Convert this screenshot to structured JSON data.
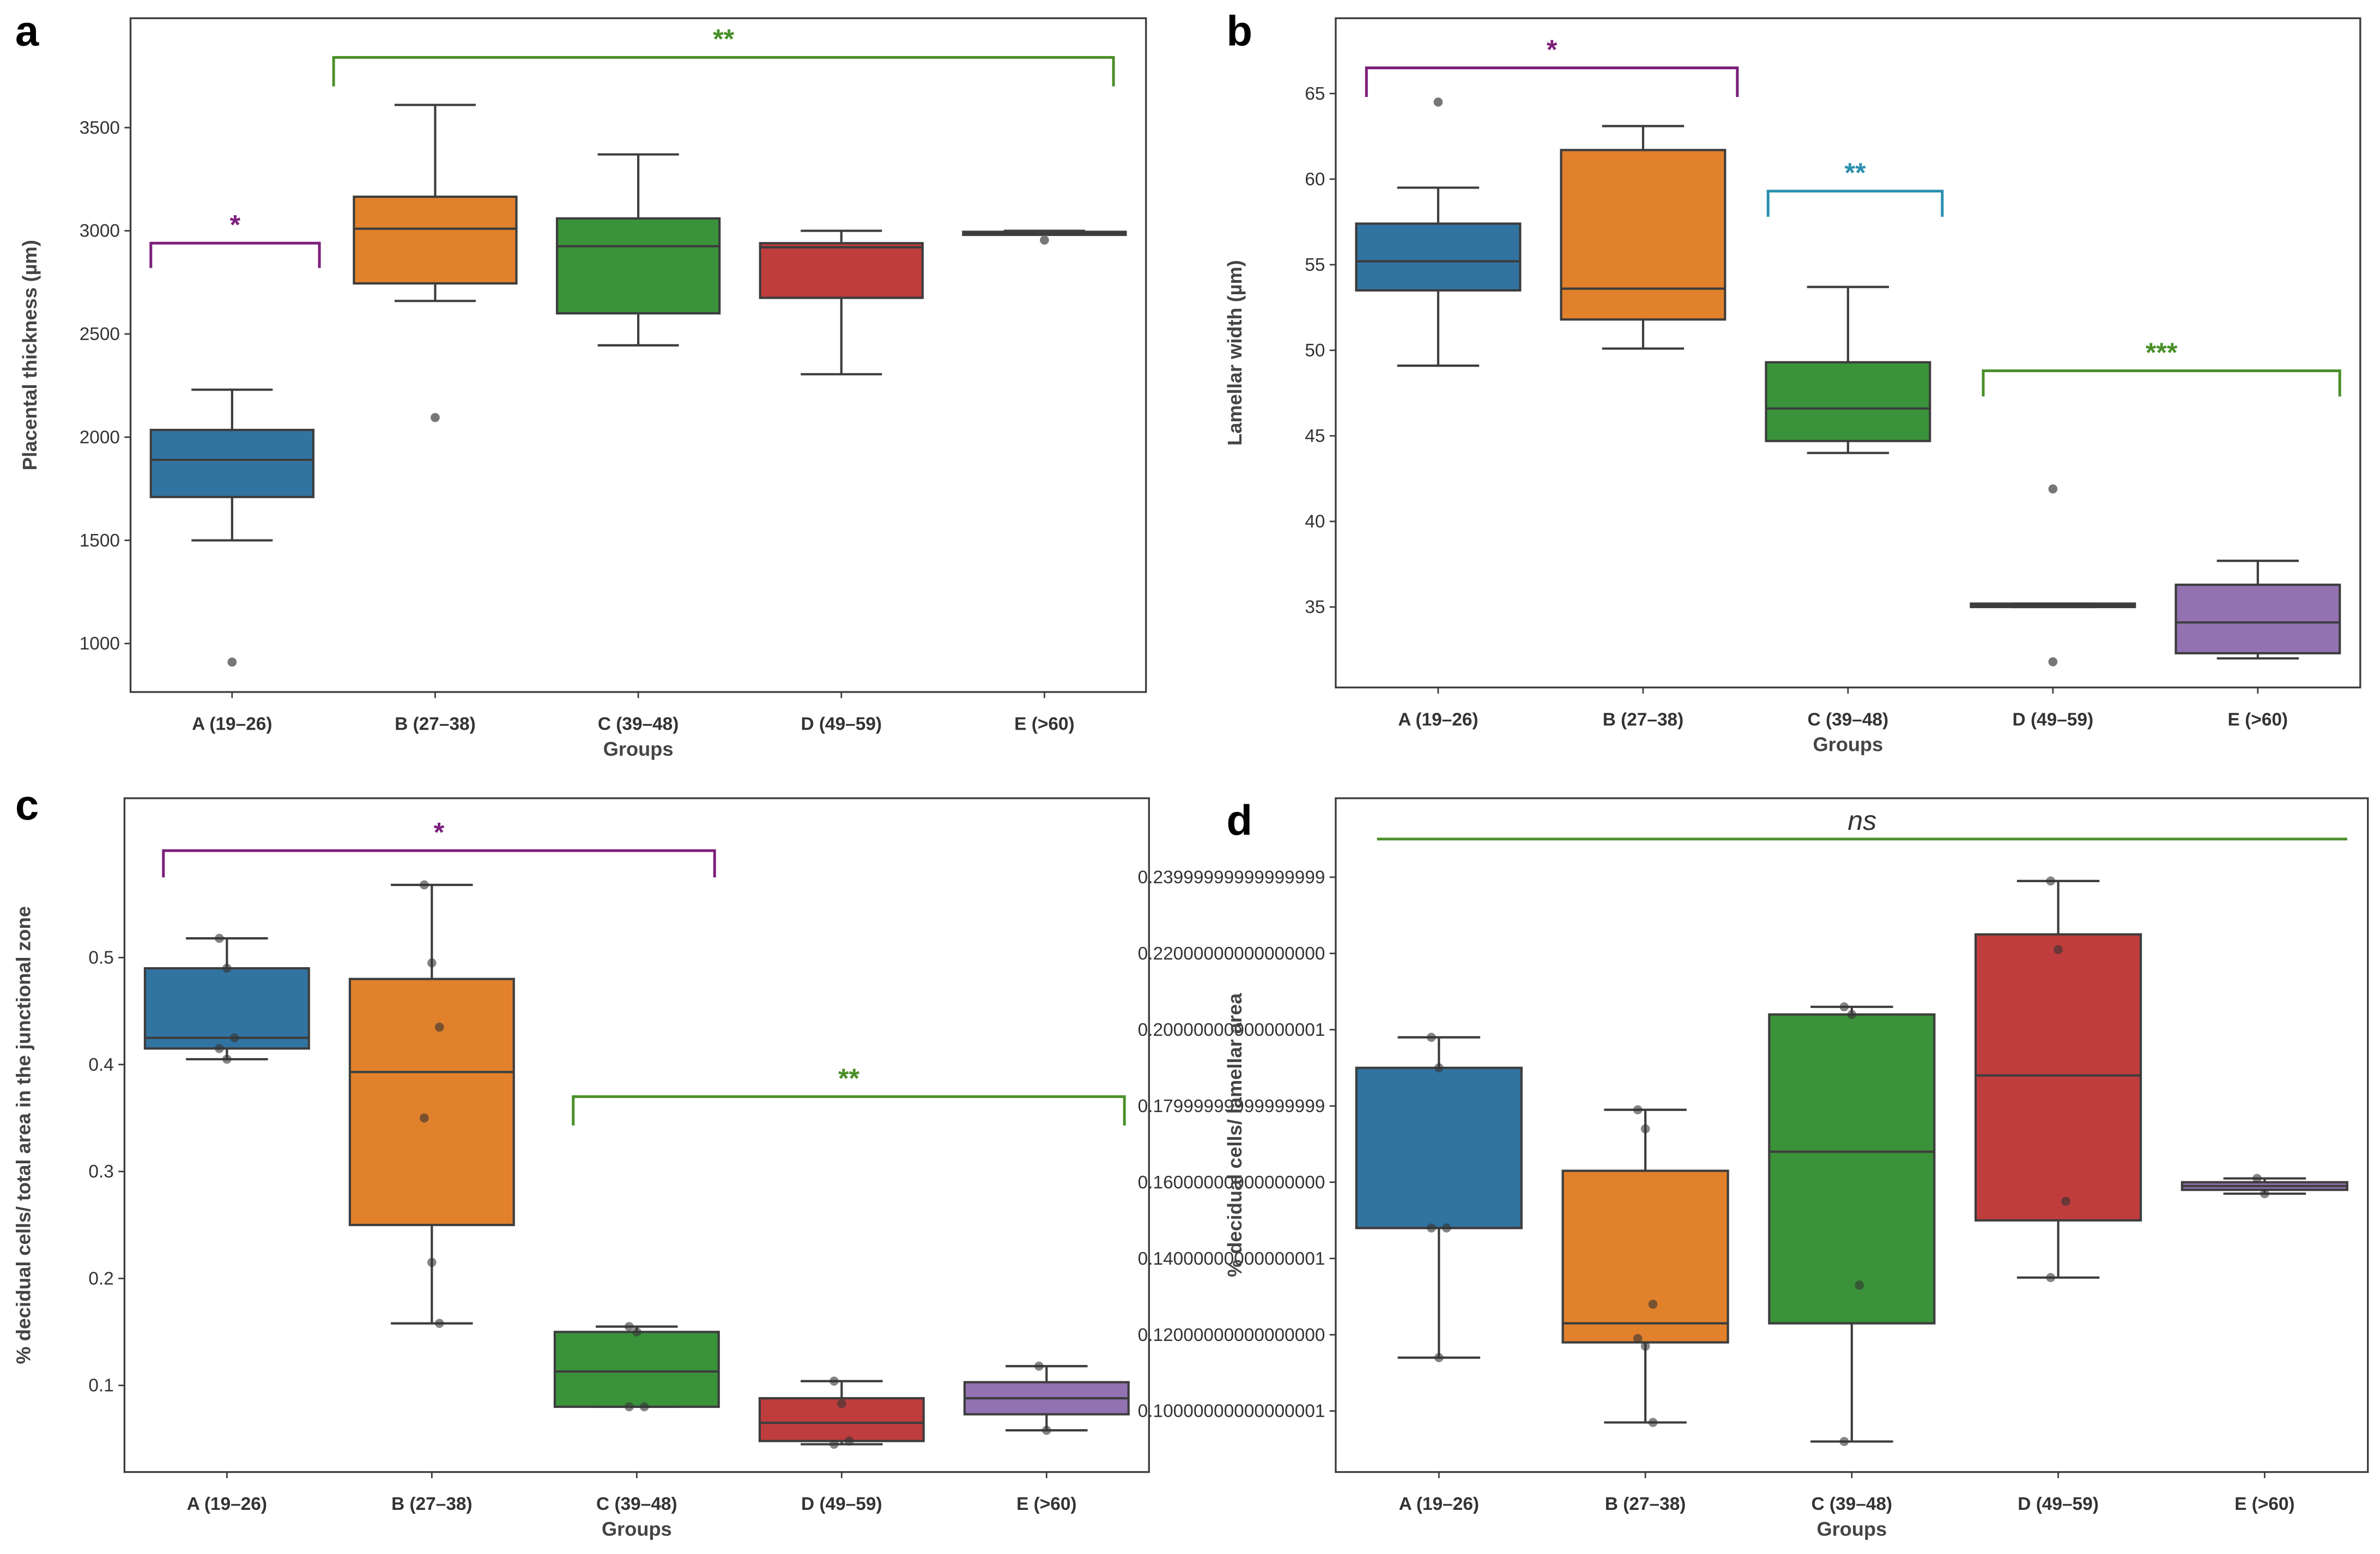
{
  "chart_data": [
    {
      "type": "box",
      "panel": "a",
      "ylabel": "Placental thickness (µm)",
      "xlabel": "Groups",
      "categories": [
        "A (19–26)",
        "B (27–38)",
        "C (39–48)",
        "D (49–59)",
        "E (>60)"
      ],
      "ylim": [
        765,
        4030
      ],
      "yticks": [
        1000,
        1500,
        2000,
        2500,
        3000,
        3500
      ],
      "boxes": [
        {
          "whislo": 1500,
          "q1": 1710,
          "med": 1890,
          "q3": 2035,
          "whishi": 2230,
          "outliers": [
            910
          ],
          "points": []
        },
        {
          "whislo": 2660,
          "q1": 2745,
          "med": 3010,
          "q3": 3165,
          "whishi": 3610,
          "outliers": [
            2095
          ],
          "points": []
        },
        {
          "whislo": 2445,
          "q1": 2600,
          "med": 2925,
          "q3": 3060,
          "whishi": 3370,
          "outliers": [],
          "points": []
        },
        {
          "whislo": 2305,
          "q1": 2675,
          "med": 2920,
          "q3": 2940,
          "whishi": 3000,
          "outliers": [],
          "points": []
        },
        {
          "whislo": 2985,
          "q1": 2985,
          "med": 2990,
          "q3": 2995,
          "whishi": 3000,
          "outliers": [
            2955
          ],
          "points": []
        }
      ],
      "annotations": [
        {
          "label": "*",
          "color": "#7b1f7b",
          "from": -0.4,
          "to": 0.43,
          "level": 2940,
          "leg": 2820
        },
        {
          "label": "**",
          "color": "#4a8f2a",
          "from": 0.5,
          "to": 4.34,
          "level": 3840,
          "leg": 3700
        }
      ]
    },
    {
      "type": "box",
      "panel": "b",
      "ylabel": "Lamellar width (µm)",
      "xlabel": "Groups",
      "categories": [
        "A (19–26)",
        "B (27–38)",
        "C (39–48)",
        "D (49–59)",
        "E (>60)"
      ],
      "ylim": [
        30.3,
        69.4
      ],
      "yticks": [
        35,
        40,
        45,
        50,
        55,
        60,
        65
      ],
      "boxes": [
        {
          "whislo": 49.1,
          "q1": 53.5,
          "med": 55.2,
          "q3": 57.4,
          "whishi": 59.5,
          "outliers": [
            64.5
          ],
          "points": []
        },
        {
          "whislo": 50.1,
          "q1": 51.8,
          "med": 53.6,
          "q3": 61.7,
          "whishi": 63.1,
          "outliers": [],
          "points": []
        },
        {
          "whislo": 44.0,
          "q1": 44.7,
          "med": 46.6,
          "q3": 49.3,
          "whishi": 53.7,
          "outliers": [],
          "points": []
        },
        {
          "whislo": 35.0,
          "q1": 35.0,
          "med": 35.1,
          "q3": 35.2,
          "whishi": 35.2,
          "outliers": [
            41.9,
            31.8
          ],
          "points": []
        },
        {
          "whislo": 32.0,
          "q1": 32.3,
          "med": 34.1,
          "q3": 36.3,
          "whishi": 37.7,
          "outliers": [],
          "points": []
        }
      ],
      "annotations": [
        {
          "label": "*",
          "color": "#7b1f7b",
          "from": -0.35,
          "to": 1.46,
          "level": 66.5,
          "leg": 64.8
        },
        {
          "label": "**",
          "color": "#2a8fb0",
          "from": 1.61,
          "to": 2.46,
          "level": 59.3,
          "leg": 57.8
        },
        {
          "label": "***",
          "color": "#4a8f2a",
          "from": 2.66,
          "to": 4.4,
          "level": 48.8,
          "leg": 47.3
        }
      ]
    },
    {
      "type": "box",
      "panel": "c",
      "ylabel": "% decidual cells/ total area in the junctional zone",
      "xlabel": "Groups",
      "categories": [
        "A (19–26)",
        "B (27–38)",
        "C (39–48)",
        "D (49–59)",
        "E (>60)"
      ],
      "ylim": [
        0.019,
        0.649
      ],
      "yticks": [
        0.1,
        0.2,
        0.3,
        0.4,
        0.5
      ],
      "boxes": [
        {
          "whislo": 0.405,
          "q1": 0.415,
          "med": 0.425,
          "q3": 0.49,
          "whishi": 0.518,
          "outliers": [],
          "points": [
            0.518,
            0.49,
            0.425,
            0.415,
            0.405
          ]
        },
        {
          "whislo": 0.158,
          "q1": 0.25,
          "med": 0.393,
          "q3": 0.48,
          "whishi": 0.568,
          "outliers": [],
          "points": [
            0.568,
            0.495,
            0.435,
            0.35,
            0.215,
            0.158
          ]
        },
        {
          "whislo": 0.08,
          "q1": 0.08,
          "med": 0.113,
          "q3": 0.15,
          "whishi": 0.155,
          "outliers": [],
          "points": [
            0.155,
            0.15,
            0.08,
            0.08
          ]
        },
        {
          "whislo": 0.045,
          "q1": 0.048,
          "med": 0.065,
          "q3": 0.088,
          "whishi": 0.104,
          "outliers": [],
          "points": [
            0.104,
            0.083,
            0.048,
            0.045
          ]
        },
        {
          "whislo": 0.058,
          "q1": 0.073,
          "med": 0.088,
          "q3": 0.103,
          "whishi": 0.118,
          "outliers": [],
          "points": [
            0.118,
            0.058
          ]
        }
      ],
      "annotations": [
        {
          "label": "*",
          "color": "#7b1f7b",
          "from": -0.31,
          "to": 2.38,
          "level": 0.6,
          "leg": 0.575
        },
        {
          "label": "**",
          "color": "#4a8f2a",
          "from": 1.69,
          "to": 4.38,
          "level": 0.37,
          "leg": 0.343
        }
      ]
    },
    {
      "type": "box",
      "panel": "d",
      "ylabel": "% decidual cells/ lamellar area",
      "xlabel": "Groups",
      "categories": [
        "A (19–26)",
        "B (27–38)",
        "C (39–48)",
        "D (49–59)",
        "E (>60)"
      ],
      "ylim": [
        0.084,
        0.2607
      ],
      "yticks": [
        0.1,
        0.12,
        0.14,
        0.16,
        0.18,
        0.2,
        0.22,
        0.24
      ],
      "boxes": [
        {
          "whislo": 0.114,
          "q1": 0.148,
          "med": 0.148,
          "q3": 0.19,
          "whishi": 0.198,
          "outliers": [],
          "points": [
            0.198,
            0.19,
            0.148,
            0.148,
            0.114
          ]
        },
        {
          "whislo": 0.097,
          "q1": 0.118,
          "med": 0.123,
          "q3": 0.163,
          "whishi": 0.179,
          "outliers": [],
          "points": [
            0.179,
            0.174,
            0.128,
            0.119,
            0.117,
            0.097
          ]
        },
        {
          "whislo": 0.092,
          "q1": 0.123,
          "med": 0.168,
          "q3": 0.204,
          "whishi": 0.206,
          "outliers": [],
          "points": [
            0.206,
            0.204,
            0.133,
            0.092
          ]
        },
        {
          "whislo": 0.135,
          "q1": 0.15,
          "med": 0.188,
          "q3": 0.225,
          "whishi": 0.239,
          "outliers": [],
          "points": [
            0.239,
            0.221,
            0.155,
            0.135
          ]
        },
        {
          "whislo": 0.157,
          "q1": 0.158,
          "med": 0.159,
          "q3": 0.16,
          "whishi": 0.161,
          "outliers": [],
          "points": [
            0.161,
            0.157
          ]
        }
      ],
      "annotations": [
        {
          "label": "ns",
          "color": "#4a8f2a",
          "from": -0.3,
          "to": 4.4,
          "level": 0.25,
          "leg": 0.25,
          "italic": true
        }
      ]
    }
  ],
  "colors": [
    "#3274a1",
    "#e1812c",
    "#3a923a",
    "#c03d3e",
    "#9372b2"
  ]
}
